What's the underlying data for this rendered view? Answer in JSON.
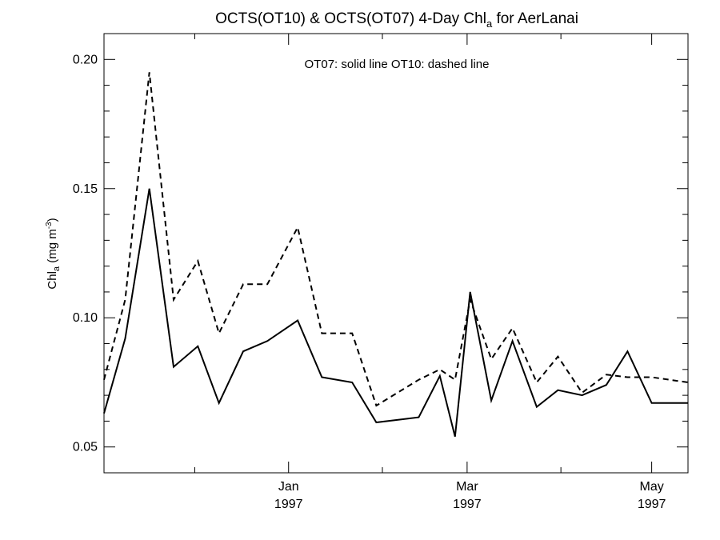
{
  "chart_data": {
    "type": "line",
    "title_main": "OCTS(OT10) & OCTS(OT07) 4-Day Chl",
    "title_sub": "a",
    "title_tail": " for AerLanai",
    "legend_text": "OT07: solid line   OT10: dashed line",
    "ylabel_main": "Chl",
    "ylabel_sub": "a",
    "ylabel_unit": " (mg m",
    "ylabel_sup": "-3",
    "ylabel_close": ")",
    "ylim": [
      0.04,
      0.21
    ],
    "xlim": [
      "1996-11-01",
      "1997-05-13"
    ],
    "y_ticks": [
      {
        "value": 0.05,
        "label": "0.05"
      },
      {
        "value": 0.1,
        "label": "0.10"
      },
      {
        "value": 0.15,
        "label": "0.15"
      },
      {
        "value": 0.2,
        "label": "0.20"
      }
    ],
    "x_ticks": [
      {
        "date": "1997-01-01",
        "label": "Jan",
        "year": "1997"
      },
      {
        "date": "1997-03-01",
        "label": "Mar",
        "year": "1997"
      },
      {
        "date": "1997-05-01",
        "label": "May",
        "year": "1997"
      }
    ],
    "x_minor_ticks": [
      "1996-12-01",
      "1997-02-01",
      "1997-04-01"
    ],
    "grid": false,
    "series": [
      {
        "name": "OT07",
        "style": "solid",
        "x": [
          "1996-11-01",
          "1996-11-08",
          "1996-11-16",
          "1996-11-24",
          "1996-12-02",
          "1996-12-09",
          "1996-12-17",
          "1996-12-25",
          "1997-01-04",
          "1997-01-12",
          "1997-01-22",
          "1997-01-30",
          "1997-02-13",
          "1997-02-20",
          "1997-02-25",
          "1997-03-02",
          "1997-03-09",
          "1997-03-16",
          "1997-03-24",
          "1997-03-31",
          "1997-04-08",
          "1997-04-16",
          "1997-04-23",
          "1997-05-01",
          "1997-05-06",
          "1997-05-13"
        ],
        "values": [
          0.063,
          0.092,
          0.15,
          0.081,
          0.089,
          0.067,
          0.087,
          0.091,
          0.099,
          0.077,
          0.075,
          0.0595,
          0.0615,
          0.0775,
          0.054,
          0.11,
          0.068,
          0.091,
          0.0655,
          0.072,
          0.07,
          0.074,
          0.087,
          0.067,
          0.067,
          0.067
        ]
      },
      {
        "name": "OT10",
        "style": "dashed",
        "x": [
          "1996-11-01",
          "1996-11-08",
          "1996-11-16",
          "1996-11-24",
          "1996-12-02",
          "1996-12-09",
          "1996-12-17",
          "1996-12-25",
          "1997-01-04",
          "1997-01-12",
          "1997-01-22",
          "1997-01-30",
          "1997-02-13",
          "1997-02-20",
          "1997-02-25",
          "1997-03-02",
          "1997-03-09",
          "1997-03-16",
          "1997-03-24",
          "1997-03-31",
          "1997-04-08",
          "1997-04-16",
          "1997-04-23",
          "1997-05-01",
          "1997-05-13"
        ],
        "values": [
          0.076,
          0.107,
          0.195,
          0.107,
          0.122,
          0.094,
          0.113,
          0.113,
          0.135,
          0.094,
          0.094,
          0.066,
          0.076,
          0.08,
          0.076,
          0.107,
          0.084,
          0.096,
          0.075,
          0.085,
          0.071,
          0.078,
          0.077,
          0.077,
          0.075
        ]
      }
    ]
  }
}
